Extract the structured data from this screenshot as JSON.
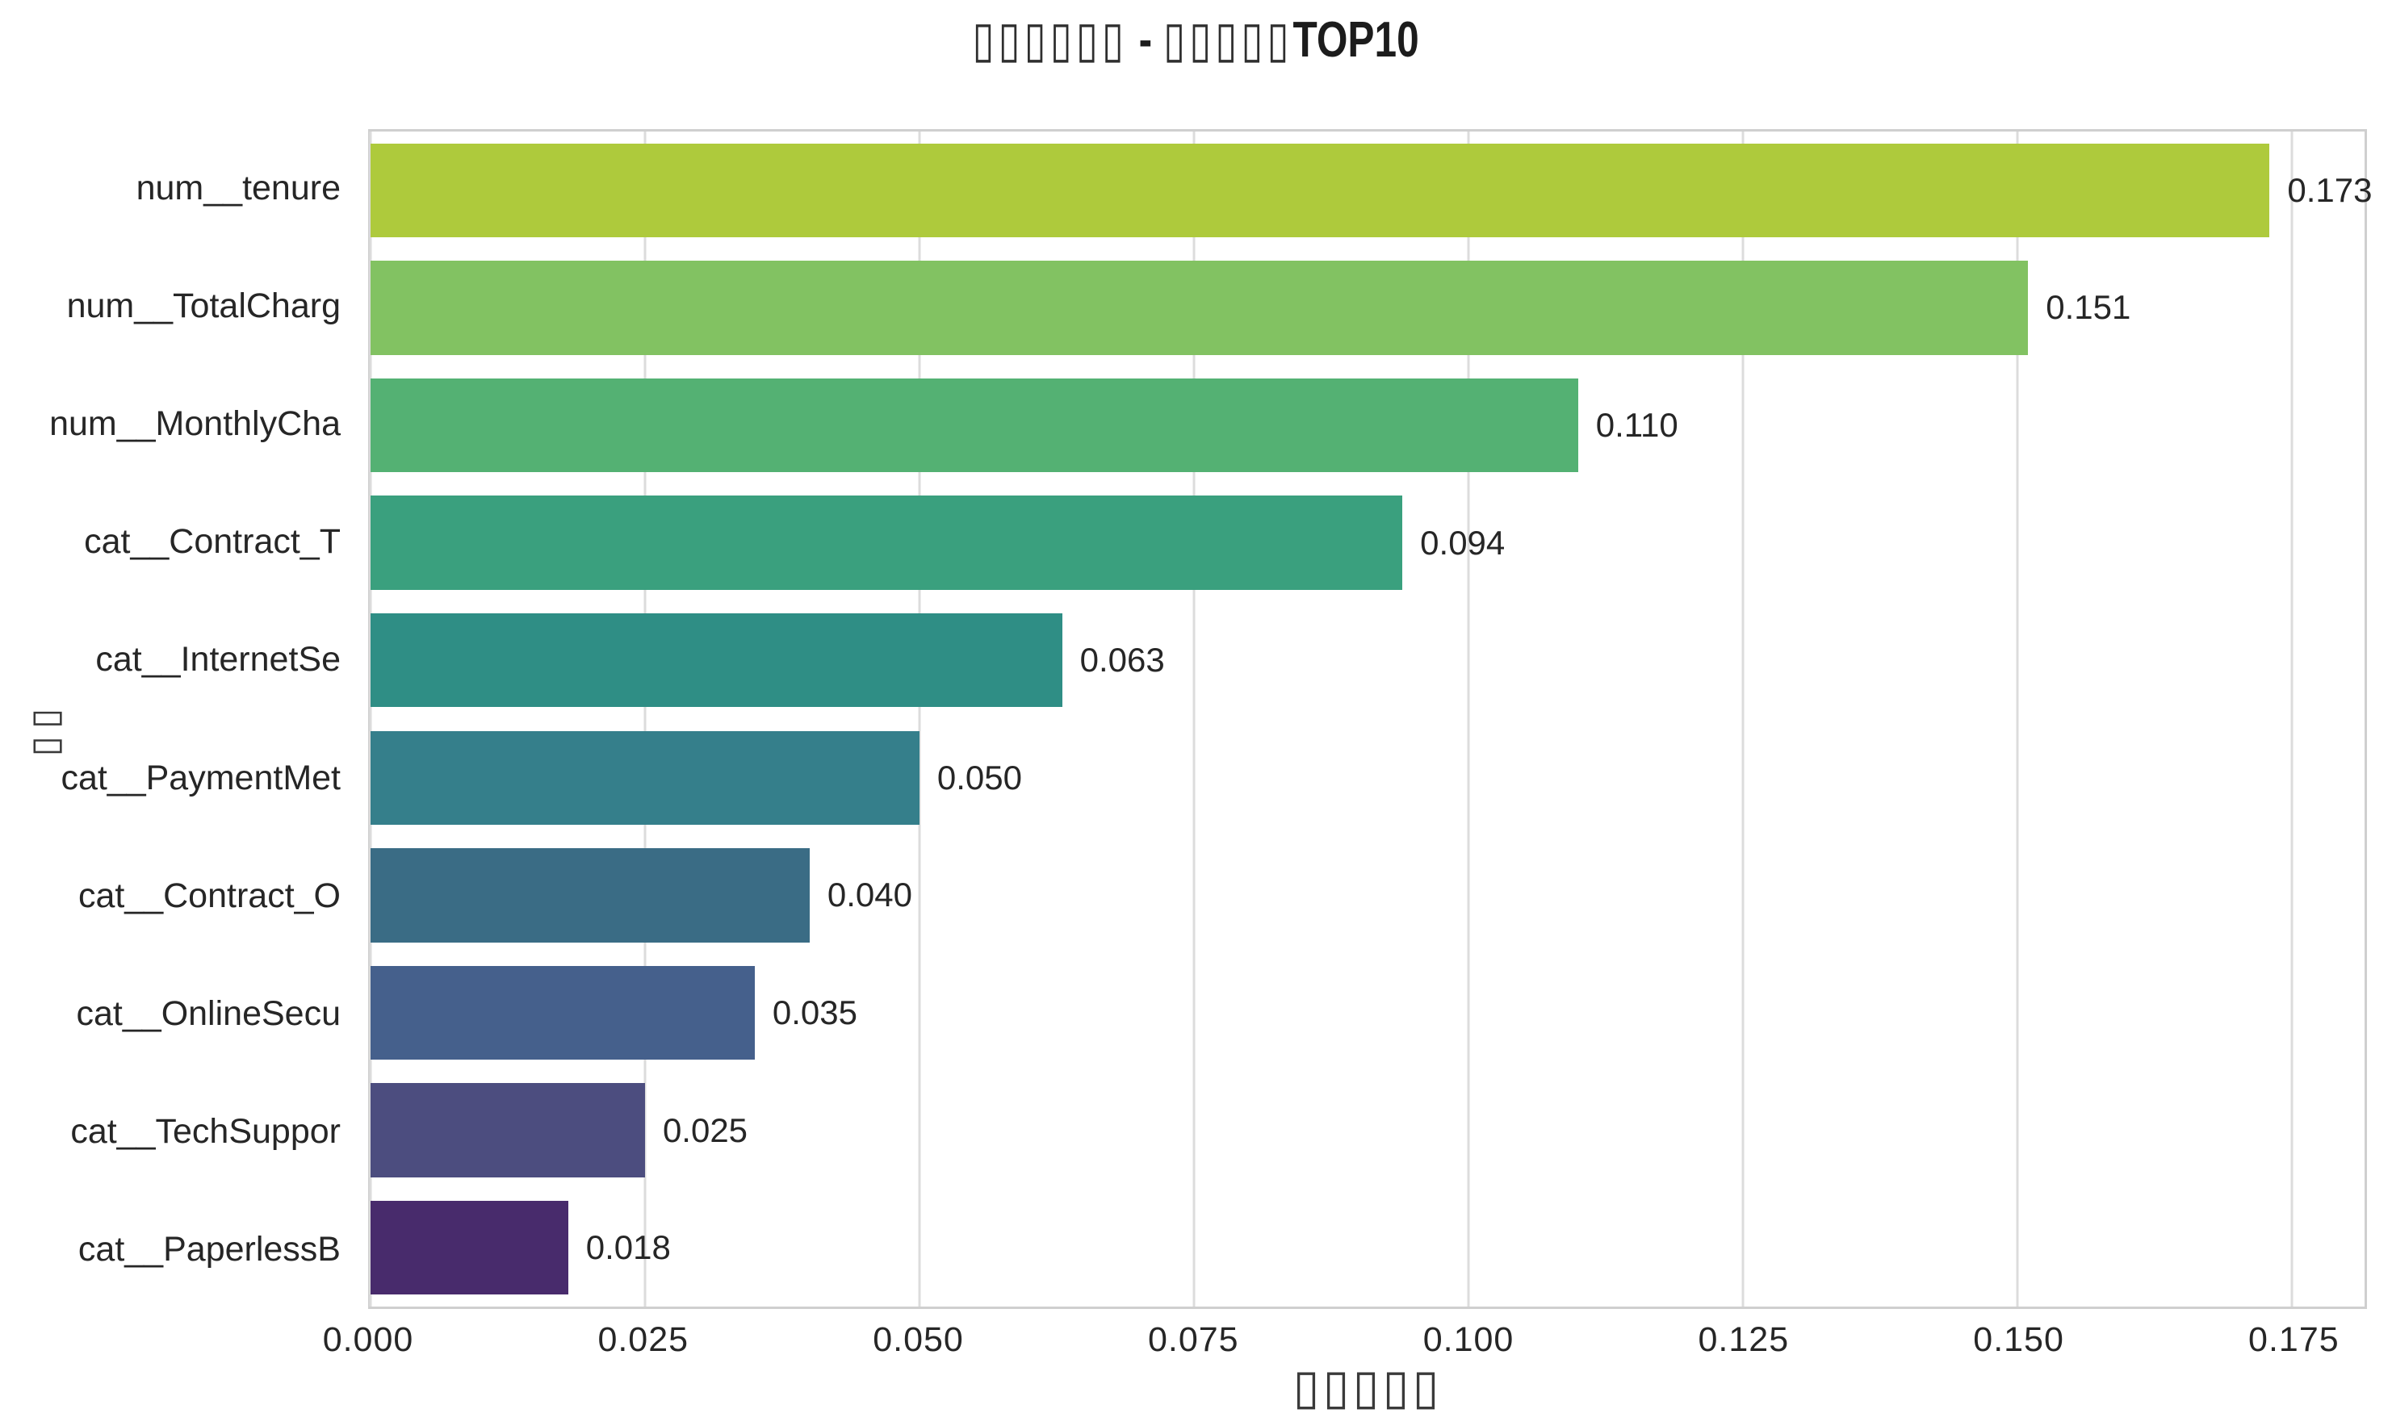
{
  "title": {
    "boxed_prefix": "▯▯▯▯▯▯",
    "separator": " - ",
    "boxed_mid": "▯▯▯▯▯",
    "suffix": "TOP10"
  },
  "chart_data": {
    "type": "bar",
    "orientation": "horizontal",
    "title": "▯▯▯▯▯▯ - ▯▯▯▯▯TOP10",
    "xlabel": "▯▯▯▯▯",
    "ylabel": "▯▯",
    "categories": [
      "num__tenure",
      "num__TotalCharg",
      "num__MonthlyCha",
      "cat__Contract_T",
      "cat__InternetSe",
      "cat__PaymentMet",
      "cat__Contract_O",
      "cat__OnlineSecu",
      "cat__TechSuppor",
      "cat__PaperlessB"
    ],
    "values": [
      0.173,
      0.151,
      0.11,
      0.094,
      0.063,
      0.05,
      0.04,
      0.035,
      0.025,
      0.018
    ],
    "value_labels": [
      "0.173",
      "0.151",
      "0.110",
      "0.094",
      "0.063",
      "0.050",
      "0.040",
      "0.035",
      "0.025",
      "0.018"
    ],
    "bar_colors": [
      "#aeca3c",
      "#82c262",
      "#54b173",
      "#3aa07e",
      "#2f8e85",
      "#357f8b",
      "#3a6c85",
      "#45608c",
      "#4c4d7f",
      "#482b6c"
    ],
    "x_ticks": [
      "0.000",
      "0.025",
      "0.050",
      "0.075",
      "0.100",
      "0.125",
      "0.150",
      "0.175"
    ],
    "xlim": [
      0,
      0.18165
    ],
    "grid": true,
    "legend_position": "none",
    "colors": {
      "gridline": "#dcdcdc",
      "spine": "#cfcfcf",
      "text": "#262626"
    }
  }
}
